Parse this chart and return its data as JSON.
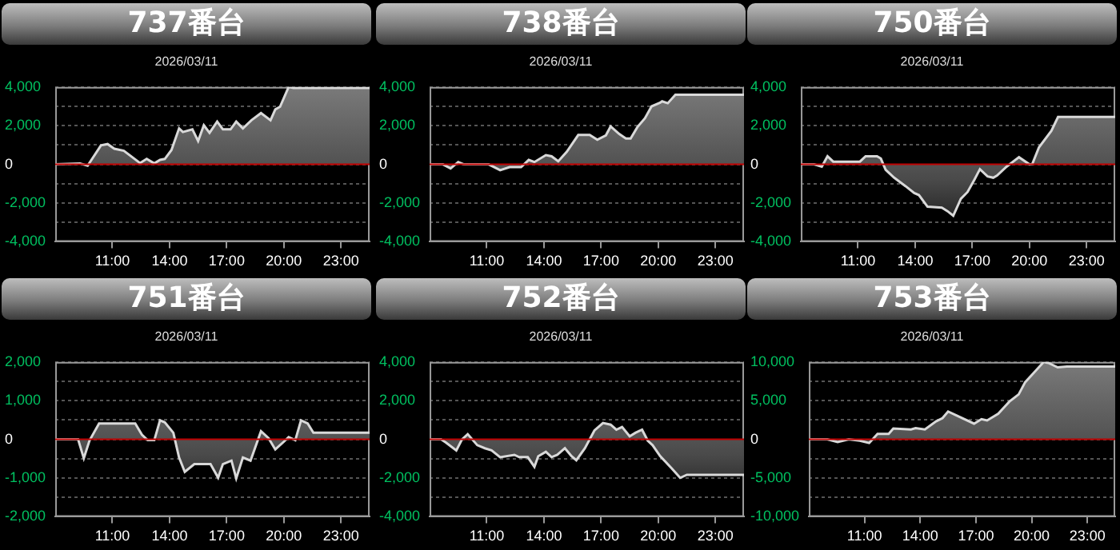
{
  "chart_data": [
    {
      "type": "area",
      "title": "737番台",
      "subtitle": "2026/03/11",
      "color": "#d9d9d9",
      "grid": "y",
      "xlim": [
        8,
        24.5
      ],
      "ylim": [
        -4000,
        4000
      ],
      "xticks": [
        {
          "value": 11,
          "label": "11:00"
        },
        {
          "value": 14,
          "label": "14:00"
        },
        {
          "value": 17,
          "label": "17:00"
        },
        {
          "value": 20,
          "label": "20:00"
        },
        {
          "value": 23,
          "label": "23:00"
        }
      ],
      "yticks": [
        {
          "value": -4000,
          "label": "-4,000"
        },
        {
          "value": -3000,
          "label": null
        },
        {
          "value": -2000,
          "label": "-2,000"
        },
        {
          "value": -1000,
          "label": null
        },
        {
          "value": 0,
          "label": "0"
        },
        {
          "value": 1000,
          "label": null
        },
        {
          "value": 2000,
          "label": "2,000"
        },
        {
          "value": 3000,
          "label": null
        },
        {
          "value": 4000,
          "label": "4,000"
        }
      ],
      "ref_lines": [
        {
          "axis": "y",
          "value": 0,
          "color": "#c00000"
        }
      ],
      "x": [
        8,
        9.3,
        9.7,
        10.4,
        10.75,
        11.1,
        11.6,
        12.45,
        12.8,
        13.2,
        13.5,
        13.75,
        14.1,
        14.5,
        14.7,
        15.2,
        15.5,
        15.8,
        16.1,
        16.5,
        16.8,
        17.2,
        17.5,
        17.85,
        18.3,
        18.8,
        19.3,
        19.55,
        19.8,
        20.25,
        20.5,
        24.5
      ],
      "values": [
        0,
        50,
        -70,
        980,
        1050,
        810,
        700,
        70,
        280,
        50,
        230,
        280,
        740,
        1860,
        1670,
        1810,
        1210,
        2020,
        1630,
        2210,
        1810,
        1810,
        2210,
        1860,
        2280,
        2650,
        2280,
        2840,
        2980,
        4000,
        3950,
        3950
      ]
    },
    {
      "type": "area",
      "title": "738番台",
      "subtitle": "2026/03/11",
      "color": "#d9d9d9",
      "grid": "y",
      "xlim": [
        8,
        24.5
      ],
      "ylim": [
        -4000,
        4000
      ],
      "xticks": [
        {
          "value": 11,
          "label": "11:00"
        },
        {
          "value": 14,
          "label": "14:00"
        },
        {
          "value": 17,
          "label": "17:00"
        },
        {
          "value": 20,
          "label": "20:00"
        },
        {
          "value": 23,
          "label": "23:00"
        }
      ],
      "yticks": [
        {
          "value": -4000,
          "label": "-4,000"
        },
        {
          "value": -3000,
          "label": null
        },
        {
          "value": -2000,
          "label": "-2,000"
        },
        {
          "value": -1000,
          "label": null
        },
        {
          "value": 0,
          "label": "0"
        },
        {
          "value": 1000,
          "label": null
        },
        {
          "value": 2000,
          "label": "2,000"
        },
        {
          "value": 3000,
          "label": null
        },
        {
          "value": 4000,
          "label": "4,000"
        }
      ],
      "ref_lines": [
        {
          "axis": "y",
          "value": 0,
          "color": "#c00000"
        }
      ],
      "x": [
        8,
        8.7,
        9.1,
        9.5,
        9.8,
        11.1,
        11.7,
        12.2,
        12.8,
        13.2,
        13.5,
        14.1,
        14.4,
        14.75,
        15.2,
        15.8,
        16.4,
        16.8,
        17.25,
        17.5,
        17.95,
        18.3,
        18.55,
        18.9,
        19.3,
        19.65,
        20.1,
        20.2,
        20.5,
        20.9,
        24.5
      ],
      "values": [
        0,
        0,
        -210,
        120,
        0,
        0,
        -300,
        -140,
        -140,
        230,
        120,
        480,
        420,
        160,
        650,
        1520,
        1520,
        1270,
        1500,
        1960,
        1570,
        1340,
        1340,
        1920,
        2380,
        3000,
        3190,
        3260,
        3160,
        3600,
        3600
      ]
    },
    {
      "type": "area",
      "title": "750番台",
      "subtitle": "2026/03/11",
      "color": "#d9d9d9",
      "grid": "y",
      "xlim": [
        8,
        24.5
      ],
      "ylim": [
        -4000,
        4000
      ],
      "xticks": [
        {
          "value": 11,
          "label": "11:00"
        },
        {
          "value": 14,
          "label": "14:00"
        },
        {
          "value": 17,
          "label": "17:00"
        },
        {
          "value": 20,
          "label": "20:00"
        },
        {
          "value": 23,
          "label": "23:00"
        }
      ],
      "yticks": [
        {
          "value": -4000,
          "label": "-4,000"
        },
        {
          "value": -3000,
          "label": null
        },
        {
          "value": -2000,
          "label": "-2,000"
        },
        {
          "value": -1000,
          "label": null
        },
        {
          "value": 0,
          "label": "0"
        },
        {
          "value": 1000,
          "label": null
        },
        {
          "value": 2000,
          "label": "2,000"
        },
        {
          "value": 3000,
          "label": null
        },
        {
          "value": 4000,
          "label": "4,000"
        }
      ],
      "ref_lines": [
        {
          "axis": "y",
          "value": 0,
          "color": "#c00000"
        }
      ],
      "x": [
        8,
        8.7,
        9.1,
        9.4,
        9.7,
        11.1,
        11.4,
        12.0,
        12.2,
        12.45,
        12.9,
        13.5,
        13.95,
        14.2,
        14.65,
        15.4,
        15.7,
        16.0,
        16.4,
        16.75,
        17.1,
        17.4,
        17.8,
        18.1,
        18.3,
        18.8,
        19.45,
        20.0,
        20.15,
        20.5,
        21.15,
        21.5,
        24.5
      ],
      "values": [
        0,
        0,
        -120,
        420,
        140,
        140,
        420,
        420,
        300,
        -280,
        -690,
        -1130,
        -1480,
        -1590,
        -2190,
        -2240,
        -2420,
        -2660,
        -1780,
        -1430,
        -810,
        -250,
        -620,
        -690,
        -580,
        -120,
        370,
        0,
        20,
        880,
        1730,
        2450,
        2450
      ]
    },
    {
      "type": "area",
      "title": "751番台",
      "subtitle": "2026/03/11",
      "color": "#d9d9d9",
      "grid": "y",
      "xlim": [
        8,
        24.5
      ],
      "ylim": [
        -2000,
        2000
      ],
      "xticks": [
        {
          "value": 11,
          "label": "11:00"
        },
        {
          "value": 14,
          "label": "14:00"
        },
        {
          "value": 17,
          "label": "17:00"
        },
        {
          "value": 20,
          "label": "20:00"
        },
        {
          "value": 23,
          "label": "23:00"
        }
      ],
      "yticks": [
        {
          "value": -2000,
          "label": "-2,000"
        },
        {
          "value": -1500,
          "label": null
        },
        {
          "value": -1000,
          "label": "-1,000"
        },
        {
          "value": -500,
          "label": null
        },
        {
          "value": 0,
          "label": "0"
        },
        {
          "value": 500,
          "label": null
        },
        {
          "value": 1000,
          "label": "1,000"
        },
        {
          "value": 1500,
          "label": null
        },
        {
          "value": 2000,
          "label": "2,000"
        }
      ],
      "ref_lines": [
        {
          "axis": "y",
          "value": 0,
          "color": "#c00000"
        }
      ],
      "x": [
        8,
        9.2,
        9.5,
        9.8,
        10.3,
        12.2,
        12.55,
        12.85,
        13.2,
        13.5,
        13.75,
        14.2,
        14.5,
        14.8,
        15.3,
        16.15,
        16.55,
        16.8,
        17.25,
        17.5,
        17.85,
        18.25,
        18.8,
        19.2,
        19.55,
        20.0,
        20.25,
        20.6,
        20.9,
        21.25,
        21.55,
        24.5
      ],
      "values": [
        0,
        0,
        -490,
        -30,
        410,
        410,
        120,
        -20,
        -20,
        490,
        440,
        170,
        -470,
        -840,
        -640,
        -640,
        -990,
        -640,
        -550,
        -1010,
        -470,
        -550,
        210,
        30,
        -260,
        -60,
        60,
        -20,
        490,
        410,
        170,
        170
      ]
    },
    {
      "type": "area",
      "title": "752番台",
      "subtitle": "2026/03/11",
      "color": "#d9d9d9",
      "grid": "y",
      "xlim": [
        8,
        24.5
      ],
      "ylim": [
        -4000,
        4000
      ],
      "xticks": [
        {
          "value": 11,
          "label": "11:00"
        },
        {
          "value": 14,
          "label": "14:00"
        },
        {
          "value": 17,
          "label": "17:00"
        },
        {
          "value": 20,
          "label": "20:00"
        },
        {
          "value": 23,
          "label": "23:00"
        }
      ],
      "yticks": [
        {
          "value": -4000,
          "label": "-4,000"
        },
        {
          "value": -3000,
          "label": null
        },
        {
          "value": -2000,
          "label": "-2,000"
        },
        {
          "value": -1000,
          "label": null
        },
        {
          "value": 0,
          "label": "0"
        },
        {
          "value": 1000,
          "label": null
        },
        {
          "value": 2000,
          "label": "2,000"
        },
        {
          "value": 3000,
          "label": null
        },
        {
          "value": 4000,
          "label": "4,000"
        }
      ],
      "ref_lines": [
        {
          "axis": "y",
          "value": 0,
          "color": "#c00000"
        }
      ],
      "x": [
        8,
        8.6,
        8.85,
        9.4,
        9.7,
        10.0,
        10.5,
        10.9,
        11.25,
        11.7,
        12.45,
        12.7,
        13.15,
        13.5,
        13.7,
        14.1,
        14.4,
        14.7,
        15.1,
        15.45,
        15.7,
        16.15,
        16.65,
        17.1,
        17.5,
        17.8,
        18.1,
        18.5,
        18.8,
        19.15,
        19.45,
        19.7,
        20.1,
        20.7,
        21.15,
        21.5,
        24.5
      ],
      "values": [
        0,
        0,
        -160,
        -570,
        0,
        270,
        -300,
        -460,
        -570,
        -920,
        -800,
        -920,
        -920,
        -1420,
        -870,
        -640,
        -920,
        -800,
        -460,
        -870,
        -1080,
        -460,
        460,
        850,
        760,
        500,
        640,
        160,
        340,
        500,
        -70,
        -300,
        -870,
        -1490,
        -1990,
        -1830,
        -1830
      ]
    },
    {
      "type": "area",
      "title": "753番台",
      "subtitle": "2026/03/11",
      "color": "#d9d9d9",
      "grid": "y",
      "xlim": [
        8,
        24.5
      ],
      "ylim": [
        -10000,
        10000
      ],
      "xticks": [
        {
          "value": 11,
          "label": "11:00"
        },
        {
          "value": 14,
          "label": "14:00"
        },
        {
          "value": 17,
          "label": "17:00"
        },
        {
          "value": 20,
          "label": "20:00"
        },
        {
          "value": 23,
          "label": "23:00"
        }
      ],
      "yticks": [
        {
          "value": -10000,
          "label": "-10,000"
        },
        {
          "value": -7500,
          "label": null
        },
        {
          "value": -5000,
          "label": "-5,000"
        },
        {
          "value": -2500,
          "label": null
        },
        {
          "value": 0,
          "label": "0"
        },
        {
          "value": 2500,
          "label": null
        },
        {
          "value": 5000,
          "label": "5,000"
        },
        {
          "value": 7500,
          "label": null
        },
        {
          "value": 10000,
          "label": "10,000"
        }
      ],
      "ref_lines": [
        {
          "axis": "y",
          "value": 0,
          "color": "#c00000"
        }
      ],
      "x": [
        8,
        9,
        9.55,
        10.15,
        10.75,
        11.25,
        11.7,
        12.3,
        12.55,
        13.5,
        13.75,
        14.25,
        14.85,
        15.2,
        15.5,
        15.9,
        16.9,
        17.3,
        17.6,
        18.2,
        18.8,
        19.3,
        19.65,
        20.1,
        20.65,
        20.9,
        21.4,
        21.9,
        24.5
      ],
      "values": [
        0,
        0,
        -350,
        0,
        -170,
        -470,
        700,
        700,
        1400,
        1280,
        1450,
        1280,
        2330,
        2740,
        3600,
        3140,
        2030,
        2620,
        2440,
        3310,
        4880,
        5810,
        7380,
        8550,
        10000,
        9880,
        9300,
        9420,
        9420
      ]
    }
  ]
}
